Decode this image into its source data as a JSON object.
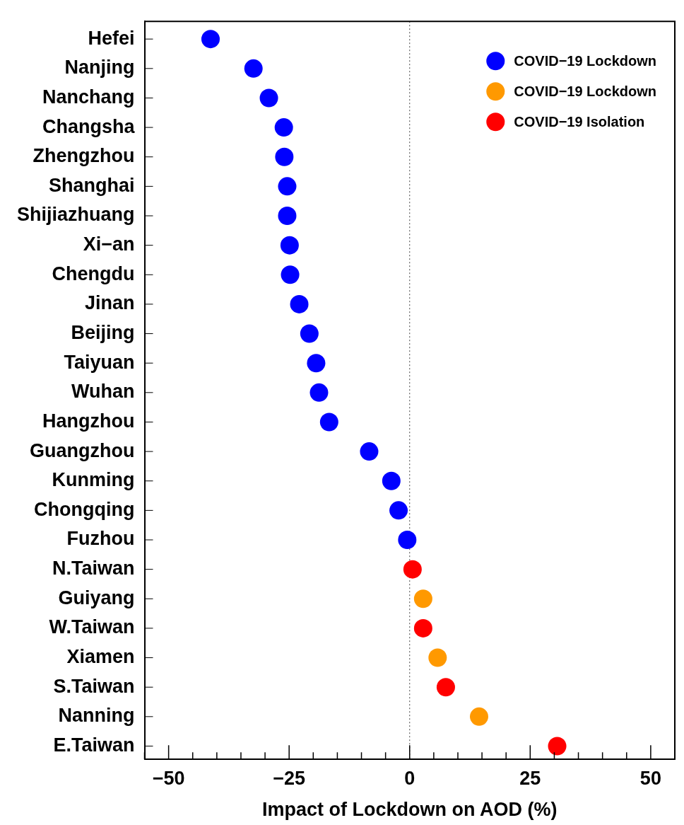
{
  "chart_data": {
    "type": "scatter",
    "orientation": "horizontal",
    "xlabel": "Impact of Lockdown on AOD (%)",
    "categories": [
      "Hefei",
      "Nanjing",
      "Nanchang",
      "Changsha",
      "Zhengzhou",
      "Shanghai",
      "Shijiazhuang",
      "Xi−an",
      "Chengdu",
      "Jinan",
      "Beijing",
      "Taiyuan",
      "Wuhan",
      "Hangzhou",
      "Guangzhou",
      "Kunming",
      "Chongqing",
      "Fuzhou",
      "N.Taiwan",
      "Guiyang",
      "W.Taiwan",
      "Xiamen",
      "S.Taiwan",
      "Nanning",
      "E.Taiwan"
    ],
    "series": [
      {
        "name": "COVID−19 Lockdown",
        "color": "#0000ff",
        "values": [
          -41.3,
          -32.4,
          -29.2,
          -26.1,
          -26.0,
          -25.4,
          -25.4,
          -24.9,
          -24.8,
          -22.9,
          -20.8,
          -19.4,
          -18.8,
          -16.7,
          -8.4,
          -3.8,
          -2.3,
          -0.5,
          null,
          null,
          null,
          null,
          null,
          null,
          null
        ]
      },
      {
        "name": "COVID−19 Lockdown",
        "color": "#ff9900",
        "values": [
          null,
          null,
          null,
          null,
          null,
          null,
          null,
          null,
          null,
          null,
          null,
          null,
          null,
          null,
          null,
          null,
          null,
          null,
          null,
          2.8,
          null,
          5.8,
          null,
          14.4,
          null
        ]
      },
      {
        "name": "COVID−19 Isolation",
        "color": "#ff0000",
        "values": [
          null,
          null,
          null,
          null,
          null,
          null,
          null,
          null,
          null,
          null,
          null,
          null,
          null,
          null,
          null,
          null,
          null,
          null,
          0.6,
          null,
          2.8,
          null,
          7.5,
          null,
          30.6
        ]
      }
    ],
    "xlim": [
      -55,
      55
    ],
    "xticks": [
      {
        "value": -55,
        "label": null
      },
      -50,
      {
        "value": -45,
        "label": null
      },
      {
        "value": -40,
        "label": null
      },
      {
        "value": -35,
        "label": null
      },
      {
        "value": -30,
        "label": null
      },
      -25,
      {
        "value": -20,
        "label": null
      },
      {
        "value": -15,
        "label": null
      },
      {
        "value": -10,
        "label": null
      },
      {
        "value": -5,
        "label": null
      },
      0,
      {
        "value": 5,
        "label": null
      },
      {
        "value": 10,
        "label": null
      },
      {
        "value": 15,
        "label": null
      },
      {
        "value": 20,
        "label": null
      },
      25,
      {
        "value": 30,
        "label": null
      },
      {
        "value": 35,
        "label": null
      },
      {
        "value": 40,
        "label": null
      },
      {
        "value": 45,
        "label": null
      },
      50,
      {
        "value": 55,
        "label": null
      }
    ],
    "ref_lines": [
      {
        "axis": "x",
        "value": 0,
        "line_style": "dotted"
      }
    ],
    "legend": "top right",
    "marker": "circle",
    "grid": false
  }
}
